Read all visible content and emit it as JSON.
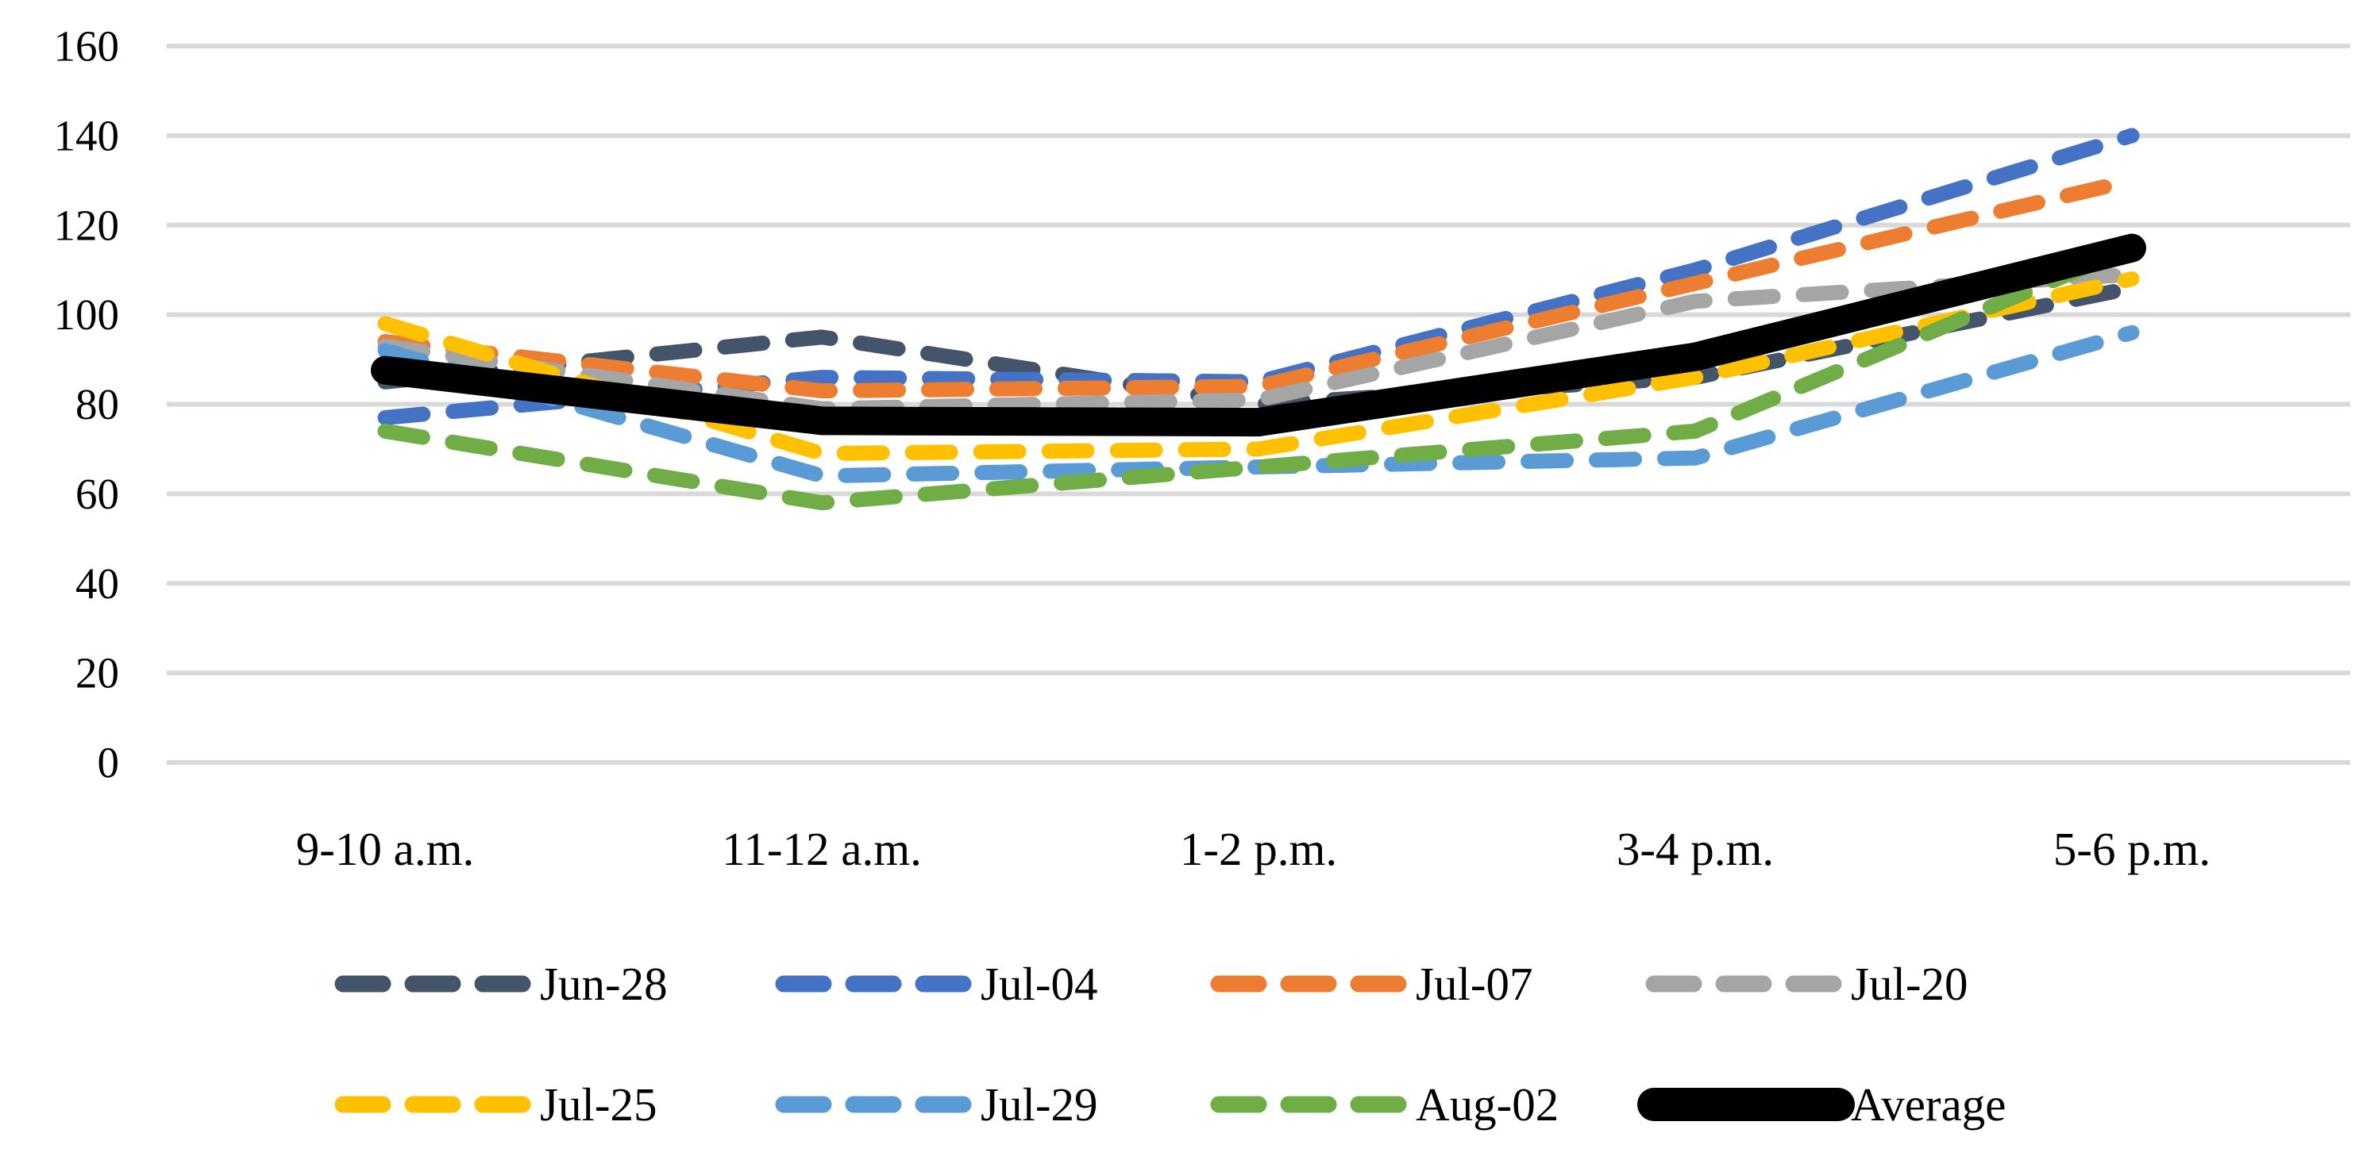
{
  "chart_data": {
    "type": "line",
    "title": "",
    "categories": [
      "9-10 a.m.",
      "11-12 a.m.",
      "1-2 p.m.",
      "3-4 p.m.",
      "5-6 p.m."
    ],
    "series": [
      {
        "name": "Jun-28",
        "color": "#44546A",
        "style": "dashed",
        "values": [
          85,
          95,
          80,
          86,
          106
        ]
      },
      {
        "name": "Jul-04",
        "color": "#4472C4",
        "style": "dashed",
        "values": [
          77,
          86,
          85,
          110,
          140
        ]
      },
      {
        "name": "Jul-07",
        "color": "#ED7D31",
        "style": "dashed",
        "values": [
          94,
          83,
          84,
          107,
          130
        ]
      },
      {
        "name": "Jul-20",
        "color": "#A5A5A5",
        "style": "dashed",
        "values": [
          93,
          79,
          81,
          103,
          109
        ]
      },
      {
        "name": "Jul-25",
        "color": "#FFC000",
        "style": "dashed",
        "values": [
          98,
          69,
          70,
          86,
          108
        ]
      },
      {
        "name": "Jul-29",
        "color": "#5B9BD5",
        "style": "dashed",
        "values": [
          92,
          64,
          66,
          68,
          96
        ]
      },
      {
        "name": "Aug-02",
        "color": "#70AD47",
        "style": "dashed",
        "values": [
          74,
          58,
          66,
          74,
          115
        ]
      },
      {
        "name": "Average",
        "color": "#000000",
        "style": "solid",
        "values": [
          87.6,
          76.3,
          76.0,
          90.6,
          114.9
        ]
      }
    ],
    "ylim": [
      0,
      160
    ],
    "ytick_step": 20,
    "ytick_labels": [
      "0",
      "20",
      "40",
      "60",
      "80",
      "100",
      "120",
      "140",
      "160"
    ],
    "grid": true,
    "gridline_color": "#D9D9D9",
    "text_color": "#000000",
    "background_color": "#FFFFFF",
    "legend_position": "bottom",
    "legend_rows": [
      [
        "Jun-28",
        "Jul-04",
        "Jul-07",
        "Jul-20"
      ],
      [
        "Jul-25",
        "Jul-29",
        "Aug-02",
        "Average"
      ]
    ]
  }
}
